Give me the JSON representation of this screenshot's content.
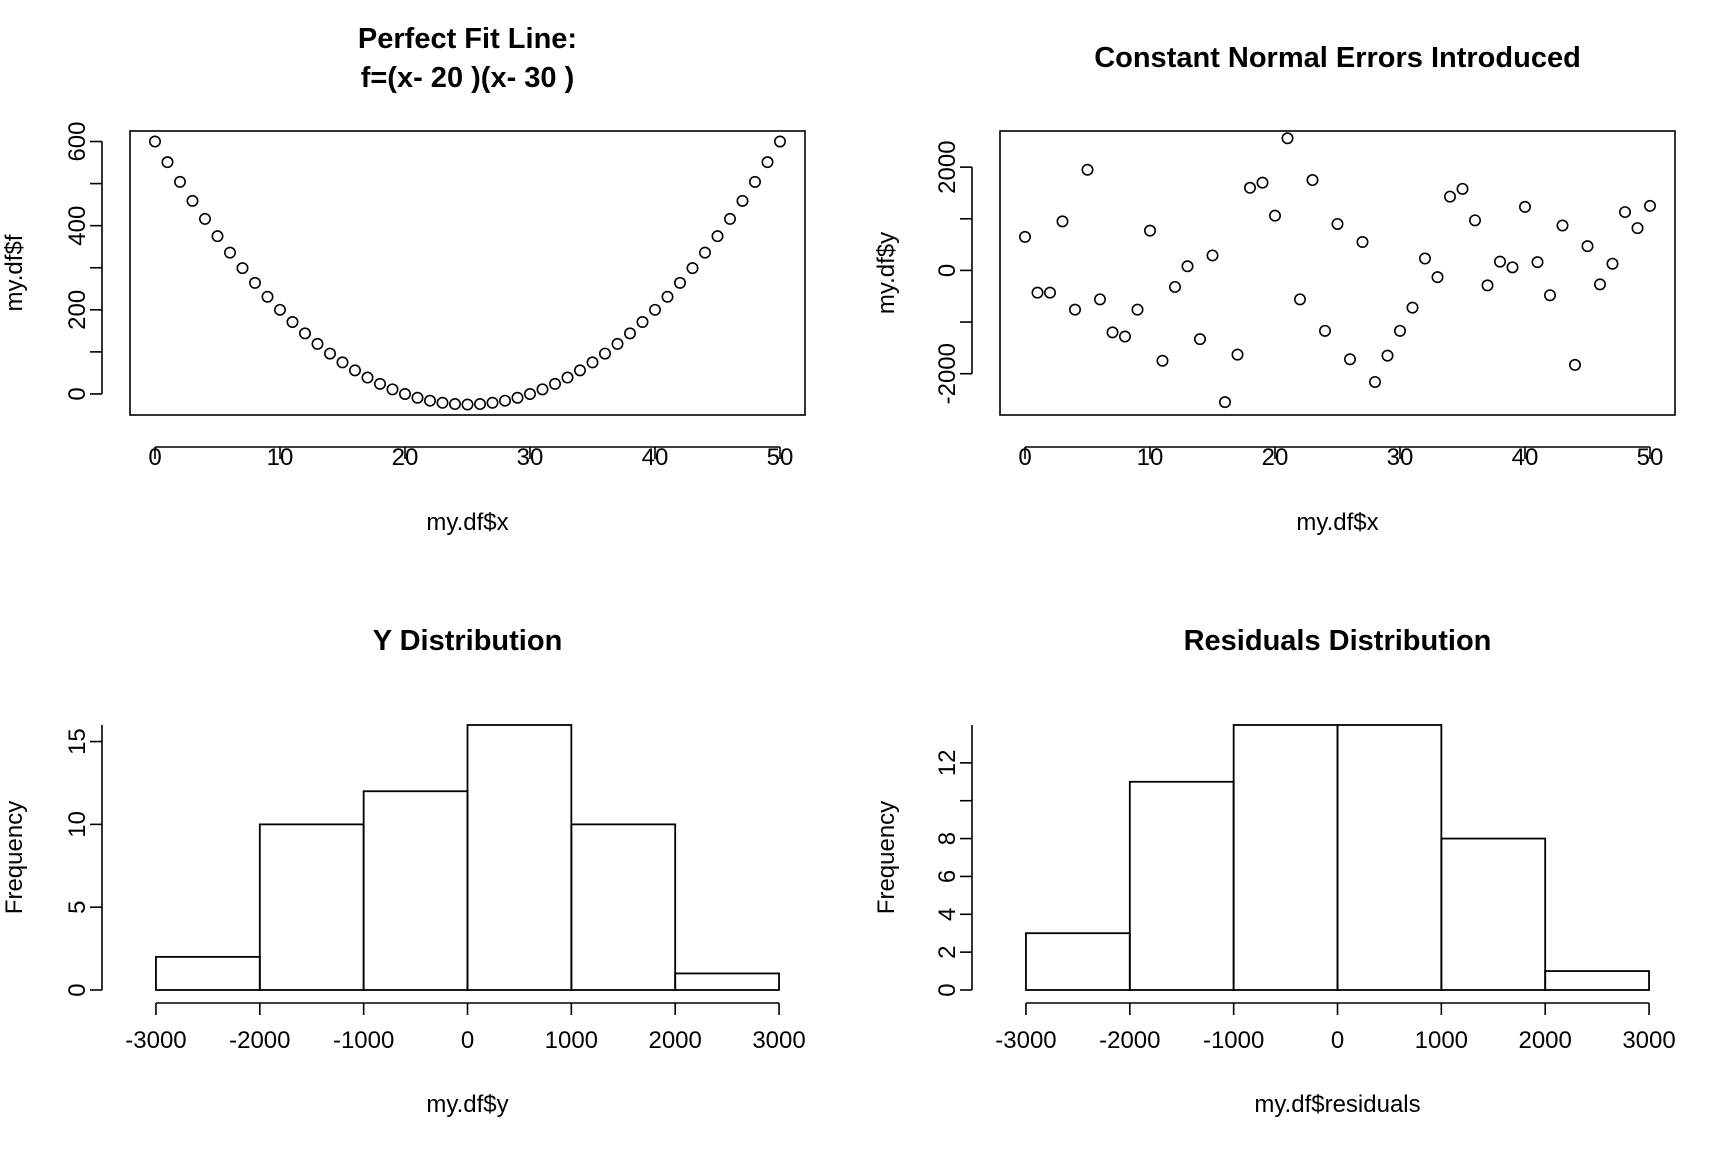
{
  "chart_data": [
    {
      "type": "scatter",
      "title_lines": [
        "Perfect Fit Line:",
        "f=(x- 20 )(x- 30 )"
      ],
      "xlabel": "my.df$x",
      "ylabel": "my.df$f",
      "xlim": [
        -2,
        52
      ],
      "ylim": [
        -50,
        625
      ],
      "xticks": [
        0,
        10,
        20,
        30,
        40,
        50
      ],
      "yticks": [
        0,
        200,
        400,
        600
      ],
      "yticks_minor": [
        100,
        300,
        500
      ],
      "x": [
        0,
        1,
        2,
        3,
        4,
        5,
        6,
        7,
        8,
        9,
        10,
        11,
        12,
        13,
        14,
        15,
        16,
        17,
        18,
        19,
        20,
        21,
        22,
        23,
        24,
        25,
        26,
        27,
        28,
        29,
        30,
        31,
        32,
        33,
        34,
        35,
        36,
        37,
        38,
        39,
        40,
        41,
        42,
        43,
        44,
        45,
        46,
        47,
        48,
        49,
        50
      ],
      "y": [
        600,
        551,
        504,
        459,
        416,
        375,
        336,
        299,
        264,
        231,
        200,
        171,
        144,
        119,
        96,
        75,
        56,
        39,
        24,
        11,
        0,
        -9,
        -16,
        -21,
        -24,
        -25,
        -24,
        -21,
        -16,
        -9,
        0,
        11,
        24,
        39,
        56,
        75,
        96,
        119,
        144,
        171,
        200,
        231,
        264,
        299,
        336,
        375,
        416,
        459,
        504,
        551,
        600
      ]
    },
    {
      "type": "scatter",
      "title_lines": [
        "Constant Normal Errors Introduced"
      ],
      "xlabel": "my.df$x",
      "ylabel": "my.df$y",
      "xlim": [
        -2,
        52
      ],
      "ylim": [
        -2800,
        2700
      ],
      "xticks": [
        0,
        10,
        20,
        30,
        40,
        50
      ],
      "yticks": [
        -2000,
        0,
        2000
      ],
      "yticks_minor": [
        -1000,
        1000
      ],
      "x": [
        0,
        1,
        2,
        3,
        4,
        5,
        6,
        7,
        8,
        9,
        10,
        11,
        12,
        13,
        14,
        15,
        16,
        17,
        18,
        19,
        20,
        21,
        22,
        23,
        24,
        25,
        26,
        27,
        28,
        29,
        30,
        31,
        32,
        33,
        34,
        35,
        36,
        37,
        38,
        39,
        40,
        41,
        42,
        43,
        44,
        45,
        46,
        47,
        48,
        49,
        50
      ],
      "y": [
        650,
        -430,
        -430,
        950,
        -760,
        1950,
        -560,
        -1200,
        -1280,
        -760,
        770,
        -1750,
        -320,
        80,
        -1330,
        290,
        -2550,
        -1630,
        1600,
        1700,
        1060,
        2560,
        -560,
        1750,
        -1170,
        900,
        -1720,
        550,
        -2160,
        -1650,
        -1170,
        -720,
        230,
        -130,
        1430,
        1580,
        970,
        -290,
        170,
        60,
        1230,
        160,
        -480,
        870,
        -1830,
        470,
        -270,
        130,
        1130,
        820,
        1250
      ]
    },
    {
      "type": "bar",
      "title_lines": [
        "Y Distribution"
      ],
      "xlabel": "my.df$y",
      "ylabel": "Frequency",
      "bin_edges": [
        -3000,
        -2000,
        -1000,
        0,
        1000,
        2000,
        3000
      ],
      "values": [
        2,
        10,
        12,
        16,
        10,
        1
      ],
      "xlim": [
        -3250,
        3250
      ],
      "ylim": [
        0,
        16
      ],
      "xticks": [
        -3000,
        -2000,
        -1000,
        0,
        1000,
        2000,
        3000
      ],
      "yticks": [
        0,
        5,
        10,
        15
      ]
    },
    {
      "type": "bar",
      "title_lines": [
        "Residuals Distribution"
      ],
      "xlabel": "my.df$residuals",
      "ylabel": "Frequency",
      "bin_edges": [
        -3000,
        -2000,
        -1000,
        0,
        1000,
        2000,
        3000
      ],
      "values": [
        3,
        11,
        14,
        14,
        8,
        1
      ],
      "xlim": [
        -3250,
        3250
      ],
      "ylim": [
        0,
        14
      ],
      "xticks": [
        -3000,
        -2000,
        -1000,
        0,
        1000,
        2000,
        3000
      ],
      "yticks": [
        0,
        2,
        4,
        6,
        8,
        12
      ],
      "yticks_minor": [
        10
      ]
    }
  ]
}
